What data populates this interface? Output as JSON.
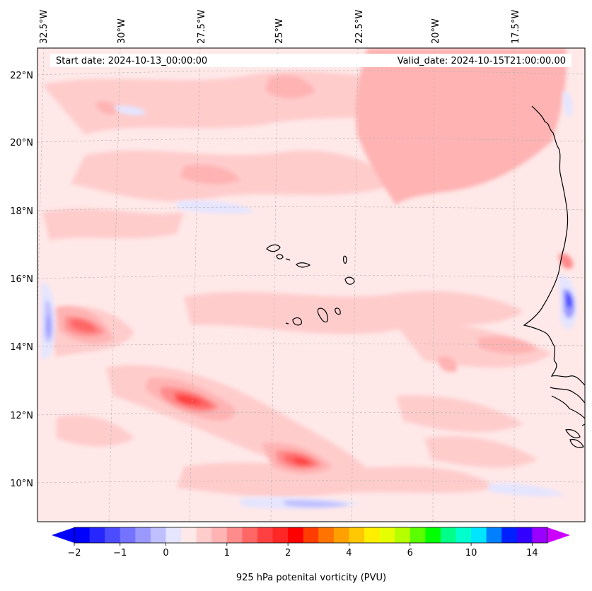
{
  "header": {
    "start_date": "Start date: 2024-10-13_00:00:00",
    "valid_date": "Valid_date: 2024-10-15T21:00:00.00"
  },
  "map": {
    "background_color": "#ffe8e8",
    "coastline_color": "#000000",
    "longitude_labels": [
      "32.5°W",
      "30°W",
      "27.5°W",
      "25°W",
      "22.5°W",
      "20°W",
      "17.5°W"
    ],
    "latitude_labels": [
      "22°N",
      "20°N",
      "18°N",
      "16°N",
      "14°N",
      "12°N",
      "10°N"
    ],
    "features": [
      {
        "name": "Cabo Verde islands",
        "type": "islands"
      },
      {
        "name": "West African coastline",
        "type": "coastline"
      },
      {
        "name": "Strong vorticity max near 14.5°N 31°W",
        "level": "high"
      },
      {
        "name": "Vorticity band near 12.3°N 28°W",
        "level": "high"
      },
      {
        "name": "Vorticity max near 10.6°N 24.5°W",
        "level": "high"
      },
      {
        "name": "Negative vorticity streak near 14.5°N 32.8°W",
        "level": "negative"
      },
      {
        "name": "Negative vorticity near 15.2°N 17°W",
        "level": "negative"
      }
    ]
  },
  "colorbar": {
    "label": "925 hPa potenital vorticity (PVU)",
    "tick_labels": [
      "-2",
      "-1",
      "0",
      "1",
      "2",
      "4",
      "6",
      "10",
      "14"
    ],
    "colors": [
      "#0000ff",
      "#2626ff",
      "#4c4cff",
      "#7373ff",
      "#9999ff",
      "#bfbfff",
      "#e5e5ff",
      "#ffe8e8",
      "#ffcccc",
      "#ffb3b3",
      "#ff8c8c",
      "#ff6666",
      "#ff4040",
      "#ff2626",
      "#ff0000",
      "#ff3d00",
      "#ff7300",
      "#ffa000",
      "#ffc800",
      "#ffee00",
      "#e6ff00",
      "#b4ff00",
      "#5aff00",
      "#00ff00",
      "#00ff88",
      "#00ffcc",
      "#00e5ff",
      "#0080ff",
      "#0020ff",
      "#3300ff",
      "#9900ff"
    ],
    "extend_min_color": "#0000ff",
    "extend_max_color": "#cc00ff"
  }
}
